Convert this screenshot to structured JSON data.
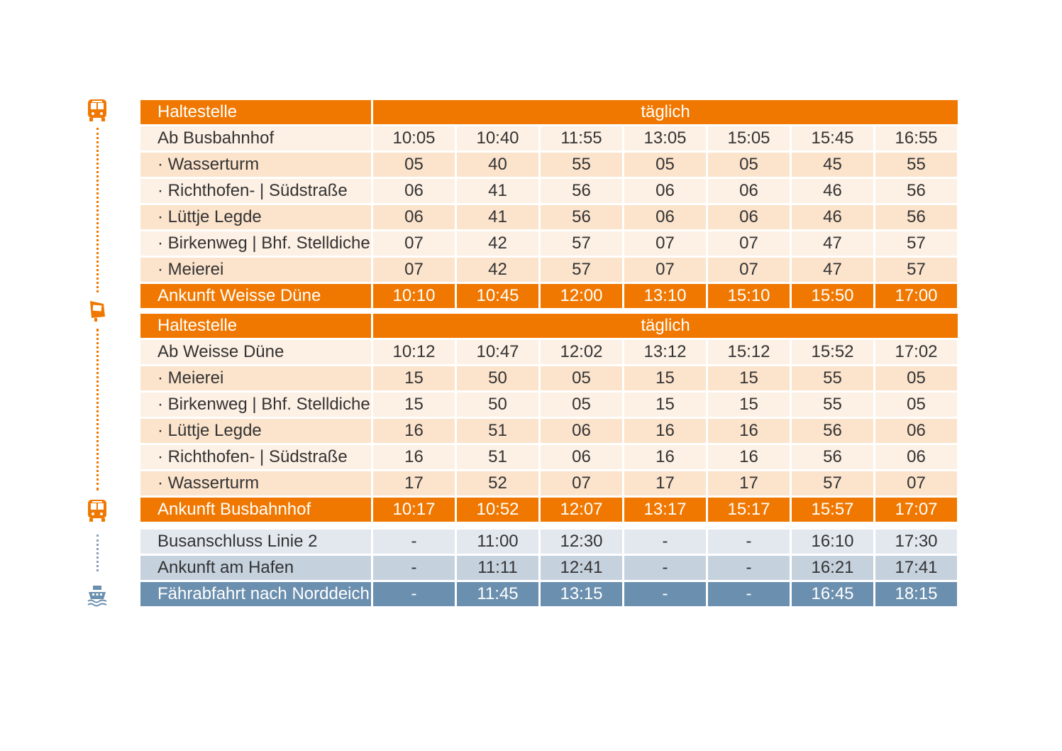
{
  "colors": {
    "accent": "#f07800",
    "row_light": "#fdf0e4",
    "row_mid": "#fbe3cc",
    "connection_light": "#e3e8ef",
    "connection_mid": "#c6d1de",
    "ferry_blue": "#6b8fae"
  },
  "icons": [
    "bus-icon",
    "bus-stop-icon",
    "bus-icon",
    "ferry-icon"
  ],
  "outbound": {
    "header": {
      "stop_label": "Haltestelle",
      "days_label": "täglich"
    },
    "rows": [
      {
        "name": "Ab Busbahnhof",
        "times": [
          "10:05",
          "10:40",
          "11:55",
          "13:05",
          "15:05",
          "15:45",
          "16:55"
        ]
      },
      {
        "name": "· Wasserturm",
        "times": [
          "05",
          "40",
          "55",
          "05",
          "05",
          "45",
          "55"
        ]
      },
      {
        "name": "· Richthofen- | Südstraße",
        "times": [
          "06",
          "41",
          "56",
          "06",
          "06",
          "46",
          "56"
        ]
      },
      {
        "name": "· Lüttje Legde",
        "times": [
          "06",
          "41",
          "56",
          "06",
          "06",
          "46",
          "56"
        ]
      },
      {
        "name": "· Birkenweg | Bhf. Stelldichein",
        "times": [
          "07",
          "42",
          "57",
          "07",
          "07",
          "47",
          "57"
        ]
      },
      {
        "name": "· Meierei",
        "times": [
          "07",
          "42",
          "57",
          "07",
          "07",
          "47",
          "57"
        ]
      }
    ],
    "arrival": {
      "name": "Ankunft Weisse Düne",
      "times": [
        "10:10",
        "10:45",
        "12:00",
        "13:10",
        "15:10",
        "15:50",
        "17:00"
      ]
    }
  },
  "inbound": {
    "header": {
      "stop_label": "Haltestelle",
      "days_label": "täglich"
    },
    "rows": [
      {
        "name": "Ab Weisse Düne",
        "times": [
          "10:12",
          "10:47",
          "12:02",
          "13:12",
          "15:12",
          "15:52",
          "17:02"
        ]
      },
      {
        "name": "· Meierei",
        "times": [
          "15",
          "50",
          "05",
          "15",
          "15",
          "55",
          "05"
        ]
      },
      {
        "name": "· Birkenweg | Bhf. Stelldichein",
        "times": [
          "15",
          "50",
          "05",
          "15",
          "15",
          "55",
          "05"
        ]
      },
      {
        "name": "· Lüttje Legde",
        "times": [
          "16",
          "51",
          "06",
          "16",
          "16",
          "56",
          "06"
        ]
      },
      {
        "name": "· Richthofen- | Südstraße",
        "times": [
          "16",
          "51",
          "06",
          "16",
          "16",
          "56",
          "06"
        ]
      },
      {
        "name": "· Wasserturm",
        "times": [
          "17",
          "52",
          "07",
          "17",
          "17",
          "57",
          "07"
        ]
      }
    ],
    "arrival": {
      "name": "Ankunft Busbahnhof",
      "times": [
        "10:17",
        "10:52",
        "12:07",
        "13:17",
        "15:17",
        "15:57",
        "17:07"
      ]
    }
  },
  "connections": [
    {
      "name": "Busanschluss Linie 2",
      "times": [
        "-",
        "11:00",
        "12:30",
        "-",
        "-",
        "16:10",
        "17:30"
      ]
    },
    {
      "name": "Ankunft am Hafen",
      "times": [
        "-",
        "11:11",
        "12:41",
        "-",
        "-",
        "16:21",
        "17:41"
      ]
    },
    {
      "name": "Fährabfahrt nach Norddeich",
      "times": [
        "-",
        "11:45",
        "13:15",
        "-",
        "-",
        "16:45",
        "18:15"
      ]
    }
  ]
}
